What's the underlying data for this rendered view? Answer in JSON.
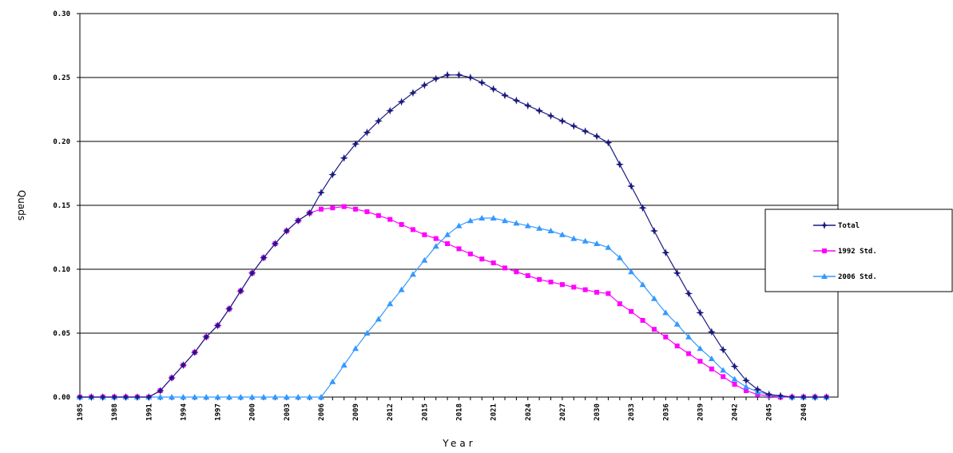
{
  "chart_data": {
    "type": "line",
    "xlabel": "Year",
    "ylabel": "Quads",
    "ylim": [
      0,
      0.3
    ],
    "yticks": [
      "0.00",
      "0.05",
      "0.10",
      "0.15",
      "0.20",
      "0.25",
      "0.30"
    ],
    "xlim": [
      1985,
      2050
    ],
    "xticks": [
      1985,
      1988,
      1991,
      1994,
      1997,
      2000,
      2003,
      2006,
      2009,
      2012,
      2015,
      2018,
      2021,
      2024,
      2027,
      2030,
      2033,
      2036,
      2039,
      2042,
      2045,
      2048
    ],
    "grid": "horizontal",
    "legend_position": "right",
    "x": [
      1985,
      1986,
      1987,
      1988,
      1989,
      1990,
      1991,
      1992,
      1993,
      1994,
      1995,
      1996,
      1997,
      1998,
      1999,
      2000,
      2001,
      2002,
      2003,
      2004,
      2005,
      2006,
      2007,
      2008,
      2009,
      2010,
      2011,
      2012,
      2013,
      2014,
      2015,
      2016,
      2017,
      2018,
      2019,
      2020,
      2021,
      2022,
      2023,
      2024,
      2025,
      2026,
      2027,
      2028,
      2029,
      2030,
      2031,
      2032,
      2033,
      2034,
      2035,
      2036,
      2037,
      2038,
      2039,
      2040,
      2041,
      2042,
      2043,
      2044,
      2045,
      2046,
      2047,
      2048,
      2049,
      2050
    ],
    "series": [
      {
        "name": "Total",
        "color": "#1a1a80",
        "marker": "star",
        "values": [
          0,
          0,
          0,
          0,
          0,
          0,
          0,
          0.005,
          0.015,
          0.025,
          0.035,
          0.047,
          0.056,
          0.069,
          0.083,
          0.097,
          0.109,
          0.12,
          0.13,
          0.138,
          0.144,
          0.16,
          0.174,
          0.187,
          0.198,
          0.207,
          0.216,
          0.224,
          0.231,
          0.238,
          0.244,
          0.249,
          0.252,
          0.252,
          0.25,
          0.246,
          0.241,
          0.236,
          0.232,
          0.228,
          0.224,
          0.22,
          0.216,
          0.212,
          0.208,
          0.204,
          0.199,
          0.182,
          0.165,
          0.148,
          0.13,
          0.113,
          0.097,
          0.081,
          0.066,
          0.051,
          0.037,
          0.024,
          0.013,
          0.006,
          0.002,
          0.001,
          0,
          0,
          0,
          0
        ]
      },
      {
        "name": "1992 Std.",
        "color": "#ff00ff",
        "marker": "square",
        "values": [
          0,
          0,
          0,
          0,
          0,
          0,
          0,
          0.005,
          0.015,
          0.025,
          0.035,
          0.047,
          0.056,
          0.069,
          0.083,
          0.097,
          0.109,
          0.12,
          0.13,
          0.138,
          0.144,
          0.147,
          0.148,
          0.149,
          0.147,
          0.145,
          0.142,
          0.139,
          0.135,
          0.131,
          0.127,
          0.124,
          0.12,
          0.116,
          0.112,
          0.108,
          0.105,
          0.101,
          0.098,
          0.095,
          0.092,
          0.09,
          0.088,
          0.086,
          0.084,
          0.082,
          0.081,
          0.073,
          0.067,
          0.06,
          0.053,
          0.047,
          0.04,
          0.034,
          0.028,
          0.022,
          0.016,
          0.01,
          0.005,
          0.002,
          0.001,
          0,
          0,
          0,
          0,
          0
        ]
      },
      {
        "name": "2006 Std.",
        "color": "#3399ff",
        "marker": "triangle",
        "values": [
          0,
          0,
          0,
          0,
          0,
          0,
          0,
          0,
          0,
          0,
          0,
          0,
          0,
          0,
          0,
          0,
          0,
          0,
          0,
          0,
          0,
          0,
          0.012,
          0.025,
          0.038,
          0.05,
          0.061,
          0.073,
          0.084,
          0.096,
          0.107,
          0.118,
          0.127,
          0.134,
          0.138,
          0.14,
          0.14,
          0.138,
          0.136,
          0.134,
          0.132,
          0.13,
          0.127,
          0.124,
          0.122,
          0.12,
          0.117,
          0.109,
          0.098,
          0.088,
          0.077,
          0.066,
          0.057,
          0.047,
          0.038,
          0.03,
          0.021,
          0.014,
          0.008,
          0.004,
          0.002,
          0.001,
          0,
          0,
          0,
          0
        ]
      }
    ]
  }
}
